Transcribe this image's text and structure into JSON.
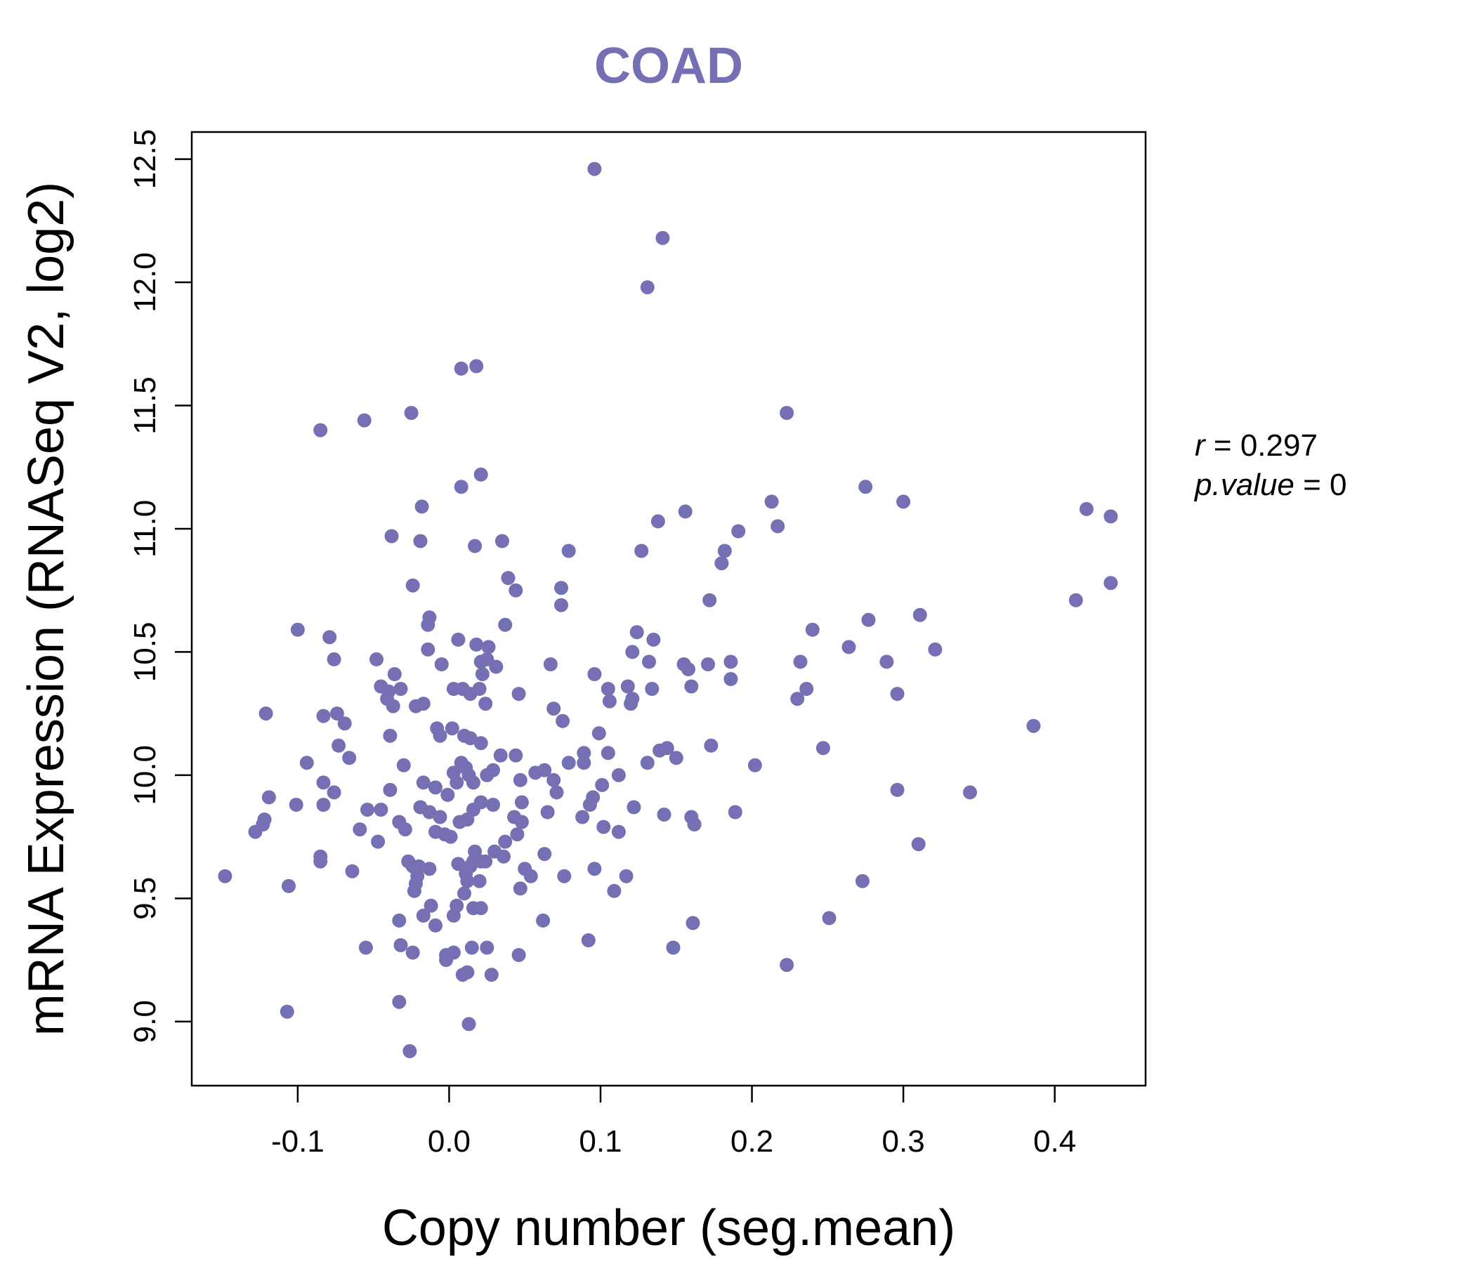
{
  "colors": {
    "point": "#7570B3",
    "title": "#7570B3",
    "axis": "#000000"
  },
  "chart_data": {
    "type": "scatter",
    "title": "COAD",
    "xlabel": "Copy number (seg.mean)",
    "ylabel": "mRNA Expression (RNASeq V2, log2)",
    "xlim": [
      -0.17,
      0.46
    ],
    "ylim": [
      8.74,
      12.61
    ],
    "x_ticks": [
      -0.1,
      0.0,
      0.1,
      0.2,
      0.3,
      0.4
    ],
    "x_tick_labels": [
      "-0.1",
      "0.0",
      "0.1",
      "0.2",
      "0.3",
      "0.4"
    ],
    "y_ticks": [
      9.0,
      9.5,
      10.0,
      10.5,
      11.0,
      11.5,
      12.0,
      12.5
    ],
    "y_tick_labels": [
      "9.0",
      "9.5",
      "10.0",
      "10.5",
      "11.0",
      "11.5",
      "12.0",
      "12.5"
    ],
    "stats": {
      "r_label": "r",
      "r_value": "0.297",
      "p_label": "p.value",
      "p_value": "0"
    },
    "points": [
      [
        0.096,
        12.46
      ],
      [
        0.141,
        12.18
      ],
      [
        0.131,
        11.98
      ],
      [
        0.008,
        11.65
      ],
      [
        0.018,
        11.66
      ],
      [
        -0.085,
        11.4
      ],
      [
        -0.056,
        11.44
      ],
      [
        -0.025,
        11.47
      ],
      [
        0.223,
        11.47
      ],
      [
        0.008,
        11.17
      ],
      [
        0.021,
        11.22
      ],
      [
        -0.018,
        11.09
      ],
      [
        -0.038,
        10.97
      ],
      [
        -0.019,
        10.95
      ],
      [
        0.017,
        10.93
      ],
      [
        0.035,
        10.95
      ],
      [
        0.079,
        10.91
      ],
      [
        0.138,
        11.03
      ],
      [
        0.156,
        11.07
      ],
      [
        0.127,
        10.91
      ],
      [
        0.213,
        11.11
      ],
      [
        0.217,
        11.01
      ],
      [
        0.191,
        10.99
      ],
      [
        0.182,
        10.91
      ],
      [
        0.18,
        10.86
      ],
      [
        0.275,
        11.17
      ],
      [
        0.3,
        11.11
      ],
      [
        0.421,
        11.08
      ],
      [
        0.437,
        11.05
      ],
      [
        0.437,
        10.78
      ],
      [
        0.414,
        10.71
      ],
      [
        0.039,
        10.8
      ],
      [
        0.044,
        10.75
      ],
      [
        0.074,
        10.76
      ],
      [
        0.074,
        10.69
      ],
      [
        0.172,
        10.71
      ],
      [
        -0.024,
        10.77
      ],
      [
        -0.013,
        10.64
      ],
      [
        -0.014,
        10.61
      ],
      [
        -0.1,
        10.59
      ],
      [
        -0.079,
        10.56
      ],
      [
        -0.076,
        10.47
      ],
      [
        -0.048,
        10.47
      ],
      [
        -0.014,
        10.51
      ],
      [
        0.006,
        10.55
      ],
      [
        0.018,
        10.53
      ],
      [
        0.026,
        10.52
      ],
      [
        0.037,
        10.61
      ],
      [
        0.124,
        10.58
      ],
      [
        0.135,
        10.55
      ],
      [
        0.24,
        10.59
      ],
      [
        0.277,
        10.63
      ],
      [
        0.311,
        10.65
      ],
      [
        0.264,
        10.52
      ],
      [
        0.321,
        10.51
      ],
      [
        -0.005,
        10.45
      ],
      [
        0.021,
        10.46
      ],
      [
        0.025,
        10.47
      ],
      [
        0.031,
        10.44
      ],
      [
        0.022,
        10.41
      ],
      [
        0.067,
        10.45
      ],
      [
        0.096,
        10.41
      ],
      [
        0.121,
        10.5
      ],
      [
        0.132,
        10.46
      ],
      [
        0.155,
        10.45
      ],
      [
        0.158,
        10.43
      ],
      [
        0.171,
        10.45
      ],
      [
        0.186,
        10.46
      ],
      [
        0.232,
        10.46
      ],
      [
        0.289,
        10.46
      ],
      [
        -0.045,
        10.36
      ],
      [
        -0.04,
        10.34
      ],
      [
        -0.036,
        10.41
      ],
      [
        -0.032,
        10.35
      ],
      [
        -0.041,
        10.31
      ],
      [
        -0.037,
        10.28
      ],
      [
        -0.022,
        10.28
      ],
      [
        -0.017,
        10.29
      ],
      [
        0.003,
        10.35
      ],
      [
        0.009,
        10.35
      ],
      [
        0.014,
        10.33
      ],
      [
        0.02,
        10.35
      ],
      [
        0.024,
        10.29
      ],
      [
        0.046,
        10.33
      ],
      [
        0.069,
        10.27
      ],
      [
        0.075,
        10.22
      ],
      [
        0.105,
        10.35
      ],
      [
        0.106,
        10.3
      ],
      [
        0.118,
        10.36
      ],
      [
        0.12,
        10.29
      ],
      [
        0.121,
        10.31
      ],
      [
        0.134,
        10.35
      ],
      [
        0.16,
        10.36
      ],
      [
        0.186,
        10.39
      ],
      [
        0.236,
        10.35
      ],
      [
        0.23,
        10.31
      ],
      [
        0.296,
        10.33
      ],
      [
        -0.121,
        10.25
      ],
      [
        -0.083,
        10.24
      ],
      [
        -0.074,
        10.25
      ],
      [
        -0.069,
        10.21
      ],
      [
        -0.073,
        10.12
      ],
      [
        -0.066,
        10.07
      ],
      [
        -0.039,
        10.16
      ],
      [
        -0.008,
        10.19
      ],
      [
        0.002,
        10.19
      ],
      [
        -0.006,
        10.16
      ],
      [
        0.01,
        10.16
      ],
      [
        0.014,
        10.15
      ],
      [
        0.021,
        10.13
      ],
      [
        0.099,
        10.17
      ],
      [
        0.139,
        10.1
      ],
      [
        0.144,
        10.11
      ],
      [
        0.15,
        10.07
      ],
      [
        0.173,
        10.12
      ],
      [
        0.202,
        10.04
      ],
      [
        0.247,
        10.11
      ],
      [
        0.386,
        10.2
      ],
      [
        -0.094,
        10.05
      ],
      [
        -0.083,
        9.97
      ],
      [
        -0.076,
        9.93
      ],
      [
        -0.101,
        9.88
      ],
      [
        -0.083,
        9.88
      ],
      [
        -0.03,
        10.04
      ],
      [
        -0.039,
        9.94
      ],
      [
        -0.017,
        9.97
      ],
      [
        -0.009,
        9.95
      ],
      [
        -0.001,
        9.92
      ],
      [
        0.003,
        10.01
      ],
      [
        0.005,
        9.97
      ],
      [
        0.008,
        10.05
      ],
      [
        0.011,
        10.03
      ],
      [
        0.013,
        10.0
      ],
      [
        0.016,
        9.97
      ],
      [
        0.025,
        10.0
      ],
      [
        0.029,
        10.02
      ],
      [
        0.034,
        10.08
      ],
      [
        0.044,
        10.08
      ],
      [
        0.047,
        9.98
      ],
      [
        0.057,
        10.01
      ],
      [
        0.063,
        10.02
      ],
      [
        0.069,
        9.98
      ],
      [
        0.071,
        9.93
      ],
      [
        0.079,
        10.05
      ],
      [
        0.089,
        10.05
      ],
      [
        0.089,
        10.09
      ],
      [
        0.095,
        9.91
      ],
      [
        0.101,
        9.96
      ],
      [
        0.105,
        10.09
      ],
      [
        0.112,
        10.0
      ],
      [
        0.131,
        10.05
      ],
      [
        0.296,
        9.94
      ],
      [
        0.344,
        9.93
      ],
      [
        -0.119,
        9.91
      ],
      [
        -0.128,
        9.77
      ],
      [
        -0.122,
        9.82
      ],
      [
        -0.123,
        9.8
      ],
      [
        -0.054,
        9.86
      ],
      [
        -0.045,
        9.86
      ],
      [
        -0.059,
        9.78
      ],
      [
        -0.047,
        9.73
      ],
      [
        -0.033,
        9.81
      ],
      [
        -0.029,
        9.78
      ],
      [
        -0.019,
        9.87
      ],
      [
        -0.013,
        9.85
      ],
      [
        -0.006,
        9.83
      ],
      [
        -0.009,
        9.77
      ],
      [
        -0.003,
        9.76
      ],
      [
        0.001,
        9.75
      ],
      [
        0.007,
        9.81
      ],
      [
        0.012,
        9.82
      ],
      [
        0.016,
        9.86
      ],
      [
        0.021,
        9.89
      ],
      [
        0.029,
        9.88
      ],
      [
        0.043,
        9.83
      ],
      [
        0.048,
        9.81
      ],
      [
        0.048,
        9.89
      ],
      [
        0.065,
        9.85
      ],
      [
        0.088,
        9.83
      ],
      [
        0.093,
        9.88
      ],
      [
        0.102,
        9.79
      ],
      [
        0.112,
        9.77
      ],
      [
        0.122,
        9.87
      ],
      [
        0.142,
        9.84
      ],
      [
        0.16,
        9.83
      ],
      [
        0.162,
        9.8
      ],
      [
        0.189,
        9.85
      ],
      [
        -0.148,
        9.59
      ],
      [
        -0.106,
        9.55
      ],
      [
        -0.085,
        9.65
      ],
      [
        -0.085,
        9.67
      ],
      [
        -0.064,
        9.61
      ],
      [
        -0.027,
        9.65
      ],
      [
        -0.024,
        9.63
      ],
      [
        -0.02,
        9.63
      ],
      [
        -0.013,
        9.62
      ],
      [
        -0.021,
        9.59
      ],
      [
        -0.022,
        9.56
      ],
      [
        -0.023,
        9.53
      ],
      [
        0.006,
        9.64
      ],
      [
        0.011,
        9.6
      ],
      [
        0.014,
        9.63
      ],
      [
        0.016,
        9.65
      ],
      [
        0.017,
        9.69
      ],
      [
        0.021,
        9.65
      ],
      [
        0.024,
        9.65
      ],
      [
        0.03,
        9.69
      ],
      [
        0.036,
        9.67
      ],
      [
        0.037,
        9.73
      ],
      [
        0.045,
        9.76
      ],
      [
        0.05,
        9.62
      ],
      [
        0.054,
        9.59
      ],
      [
        0.063,
        9.68
      ],
      [
        0.076,
        9.59
      ],
      [
        0.096,
        9.62
      ],
      [
        0.109,
        9.53
      ],
      [
        0.117,
        9.59
      ],
      [
        0.273,
        9.57
      ],
      [
        0.31,
        9.72
      ],
      [
        -0.033,
        9.41
      ],
      [
        -0.017,
        9.43
      ],
      [
        -0.012,
        9.47
      ],
      [
        -0.009,
        9.39
      ],
      [
        0.003,
        9.43
      ],
      [
        0.005,
        9.47
      ],
      [
        0.01,
        9.52
      ],
      [
        0.012,
        9.57
      ],
      [
        0.016,
        9.46
      ],
      [
        0.021,
        9.46
      ],
      [
        0.02,
        9.57
      ],
      [
        0.047,
        9.54
      ],
      [
        0.062,
        9.41
      ],
      [
        0.161,
        9.4
      ],
      [
        0.251,
        9.42
      ],
      [
        -0.055,
        9.3
      ],
      [
        -0.032,
        9.31
      ],
      [
        -0.024,
        9.28
      ],
      [
        -0.002,
        9.27
      ],
      [
        -0.002,
        9.25
      ],
      [
        0.003,
        9.28
      ],
      [
        0.009,
        9.19
      ],
      [
        0.012,
        9.2
      ],
      [
        0.015,
        9.3
      ],
      [
        0.025,
        9.3
      ],
      [
        0.028,
        9.19
      ],
      [
        0.046,
        9.27
      ],
      [
        0.092,
        9.33
      ],
      [
        0.148,
        9.3
      ],
      [
        0.223,
        9.23
      ],
      [
        -0.107,
        9.04
      ],
      [
        -0.033,
        9.08
      ],
      [
        -0.026,
        8.88
      ],
      [
        0.013,
        8.99
      ]
    ]
  }
}
